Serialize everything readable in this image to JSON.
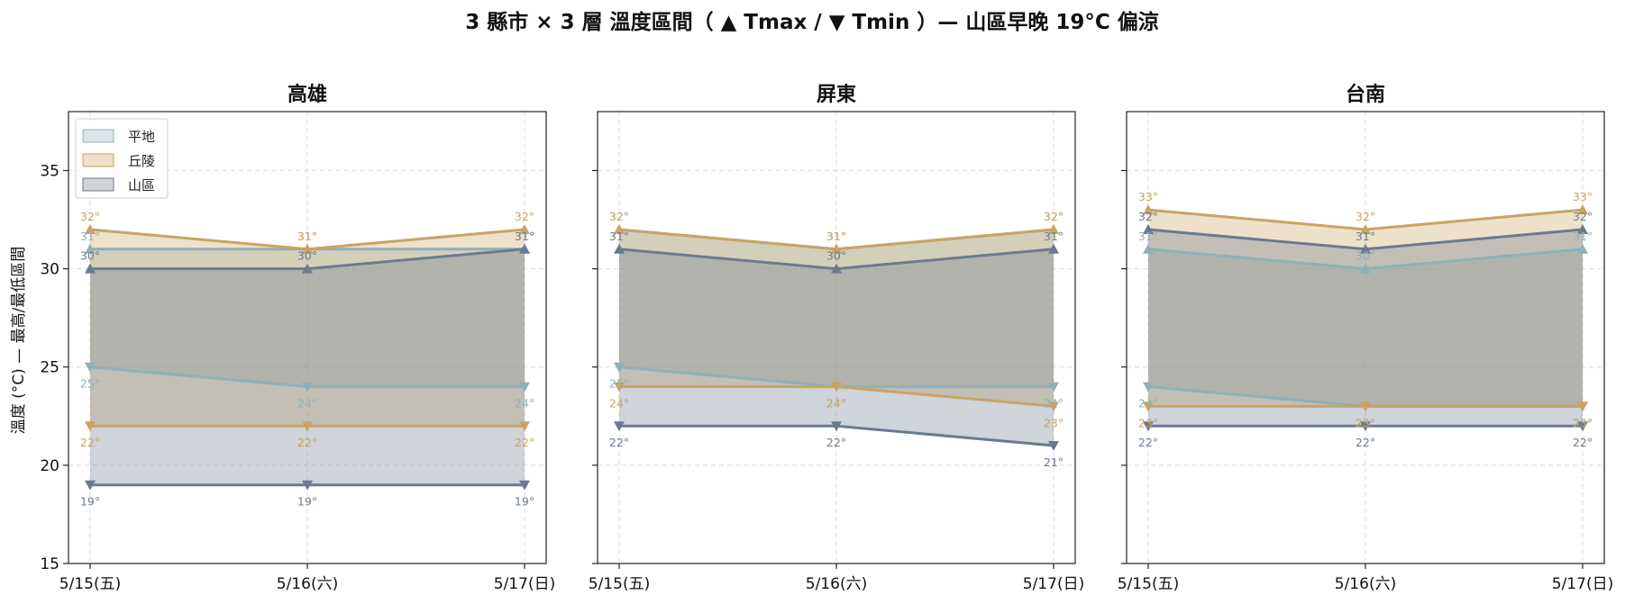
{
  "figure": {
    "title": "3 縣市 × 3 層 溫度區間（ ▲ Tmax / ▼ Tmin ）— 山區早晚 19°C 偏涼",
    "ylabel": "溫度 (°C) — 最高/最低區間"
  },
  "legend": [
    {
      "name": "平地",
      "color": "#8fb0b8"
    },
    {
      "name": "丘陵",
      "color": "#c9a462"
    },
    {
      "name": "山區",
      "color": "#6c7a90"
    }
  ],
  "chart_data": [
    {
      "type": "area",
      "title": "高雄",
      "categories": [
        "5/15(五)",
        "5/16(六)",
        "5/17(日)"
      ],
      "ylim": [
        15,
        38
      ],
      "yticks": [
        15,
        20,
        25,
        30,
        35
      ],
      "grid": true,
      "legend_position": "top-left",
      "series": [
        {
          "name": "平地",
          "tmax": [
            31,
            31,
            31
          ],
          "tmin": [
            25,
            24,
            24
          ],
          "tmax_labels": [
            "31°",
            "31°",
            "31°"
          ],
          "tmin_labels": [
            "25°",
            "24°",
            "24°"
          ]
        },
        {
          "name": "丘陵",
          "tmax": [
            32,
            31,
            32
          ],
          "tmin": [
            22,
            22,
            22
          ],
          "tmax_labels": [
            "32°",
            "31°",
            "32°"
          ],
          "tmin_labels": [
            "22°",
            "22°",
            "22°"
          ]
        },
        {
          "name": "山區",
          "tmax": [
            30,
            30,
            31
          ],
          "tmin": [
            19,
            19,
            19
          ],
          "tmax_labels": [
            "30°",
            "30°",
            "31°"
          ],
          "tmin_labels": [
            "19°",
            "19°",
            "19°"
          ]
        }
      ]
    },
    {
      "type": "area",
      "title": "屏東",
      "categories": [
        "5/15(五)",
        "5/16(六)",
        "5/17(日)"
      ],
      "ylim": [
        15,
        38
      ],
      "yticks": [
        15,
        20,
        25,
        30,
        35
      ],
      "grid": true,
      "series": [
        {
          "name": "平地",
          "tmax": [
            32,
            31,
            32
          ],
          "tmin": [
            25,
            24,
            24
          ],
          "tmax_labels": [
            "32°",
            "31°",
            "32°"
          ],
          "tmin_labels": [
            "25°",
            "24°",
            "24°"
          ]
        },
        {
          "name": "丘陵",
          "tmax": [
            32,
            31,
            32
          ],
          "tmin": [
            24,
            24,
            23
          ],
          "tmax_labels": [
            "32°",
            "31°",
            "32°"
          ],
          "tmin_labels": [
            "24°",
            "24°",
            "23°"
          ]
        },
        {
          "name": "山區",
          "tmax": [
            31,
            30,
            31
          ],
          "tmin": [
            22,
            22,
            21
          ],
          "tmax_labels": [
            "31°",
            "30°",
            "31°"
          ],
          "tmin_labels": [
            "22°",
            "22°",
            "21°"
          ]
        }
      ]
    },
    {
      "type": "area",
      "title": "台南",
      "categories": [
        "5/15(五)",
        "5/16(六)",
        "5/17(日)"
      ],
      "ylim": [
        15,
        38
      ],
      "yticks": [
        15,
        20,
        25,
        30,
        35
      ],
      "grid": true,
      "series": [
        {
          "name": "平地",
          "tmax": [
            31,
            30,
            31
          ],
          "tmin": [
            24,
            23,
            23
          ],
          "tmax_labels": [
            "31°",
            "30°",
            "31°"
          ],
          "tmin_labels": [
            "24°",
            "23°",
            "23°"
          ]
        },
        {
          "name": "丘陵",
          "tmax": [
            33,
            32,
            33
          ],
          "tmin": [
            23,
            23,
            23
          ],
          "tmax_labels": [
            "33°",
            "32°",
            "33°"
          ],
          "tmin_labels": [
            "23°",
            "23°",
            "23°"
          ]
        },
        {
          "name": "山區",
          "tmax": [
            32,
            31,
            32
          ],
          "tmin": [
            22,
            22,
            22
          ],
          "tmax_labels": [
            "32°",
            "31°",
            "32°"
          ],
          "tmin_labels": [
            "22°",
            "22°",
            "22°"
          ]
        }
      ]
    }
  ]
}
